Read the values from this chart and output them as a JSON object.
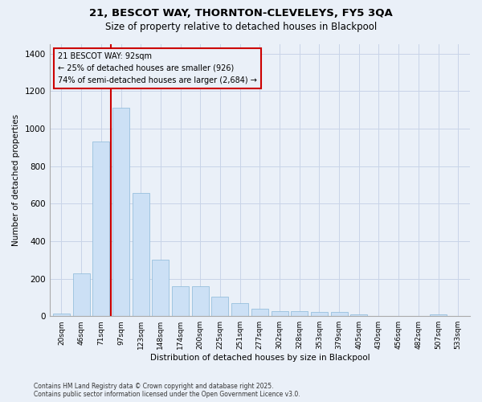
{
  "title": "21, BESCOT WAY, THORNTON-CLEVELEYS, FY5 3QA",
  "subtitle": "Size of property relative to detached houses in Blackpool",
  "xlabel": "Distribution of detached houses by size in Blackpool",
  "ylabel": "Number of detached properties",
  "footnote": "Contains HM Land Registry data © Crown copyright and database right 2025.\nContains public sector information licensed under the Open Government Licence v3.0.",
  "bar_color": "#cce0f5",
  "bar_edge_color": "#8ab8d8",
  "grid_color": "#c8d4e8",
  "background_color": "#eaf0f8",
  "annotation_box_color": "#cc0000",
  "vline_color": "#cc0000",
  "categories": [
    "20sqm",
    "46sqm",
    "71sqm",
    "97sqm",
    "123sqm",
    "148sqm",
    "174sqm",
    "200sqm",
    "225sqm",
    "251sqm",
    "277sqm",
    "302sqm",
    "328sqm",
    "353sqm",
    "379sqm",
    "405sqm",
    "430sqm",
    "456sqm",
    "482sqm",
    "507sqm",
    "533sqm"
  ],
  "values": [
    15,
    230,
    930,
    1110,
    655,
    300,
    160,
    160,
    105,
    70,
    40,
    25,
    25,
    22,
    22,
    10,
    0,
    0,
    0,
    10,
    0
  ],
  "ylim": [
    0,
    1450
  ],
  "yticks": [
    0,
    200,
    400,
    600,
    800,
    1000,
    1200,
    1400
  ],
  "vline_position": 2.5,
  "annotation_line1": "21 BESCOT WAY: 92sqm",
  "annotation_line2": "← 25% of detached houses are smaller (926)",
  "annotation_line3": "74% of semi-detached houses are larger (2,684) →"
}
